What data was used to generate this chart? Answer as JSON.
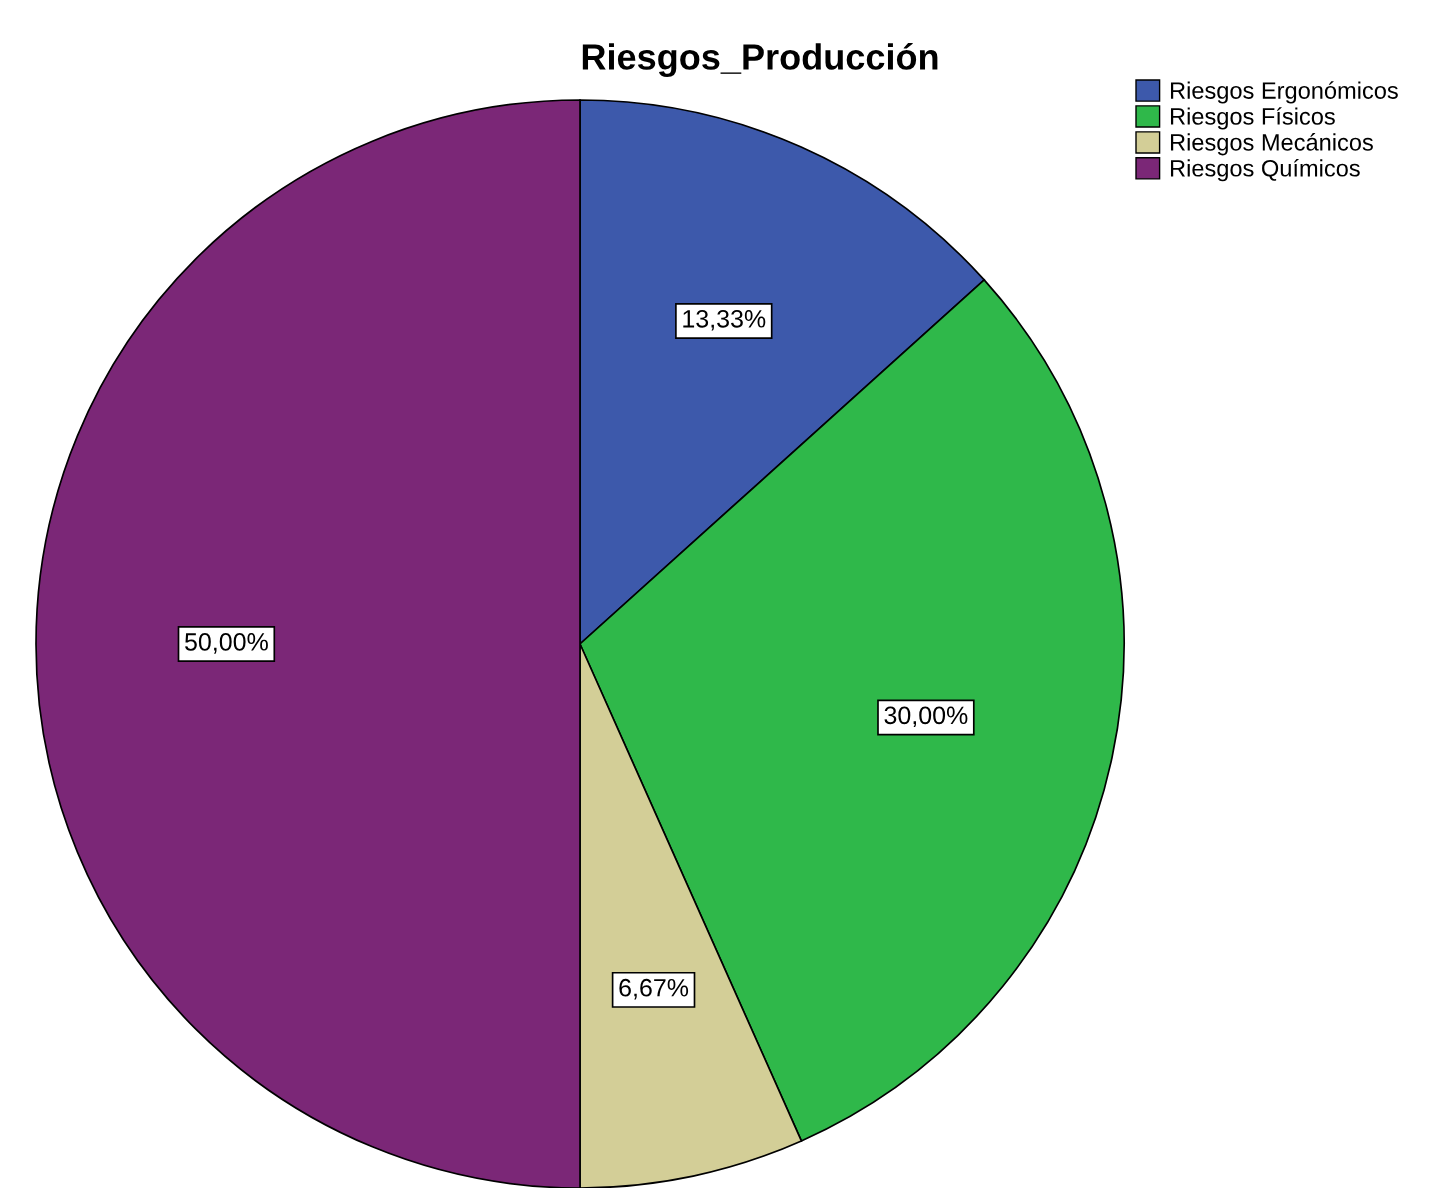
{
  "chart_data": {
    "type": "pie",
    "title": "Riesgos_Producción",
    "categories": [
      "Riesgos Ergonómicos",
      "Riesgos Físicos",
      "Riesgos Mecánicos",
      "Riesgos Químicos"
    ],
    "values": [
      13.33,
      30.0,
      6.67,
      50.0
    ],
    "colors": [
      "#3d59ab",
      "#2fb84a",
      "#d3ce97",
      "#7b2777"
    ],
    "value_labels": [
      "13,33%",
      "30,00%",
      "6,67%",
      "50,00%"
    ],
    "legend": "top right"
  }
}
